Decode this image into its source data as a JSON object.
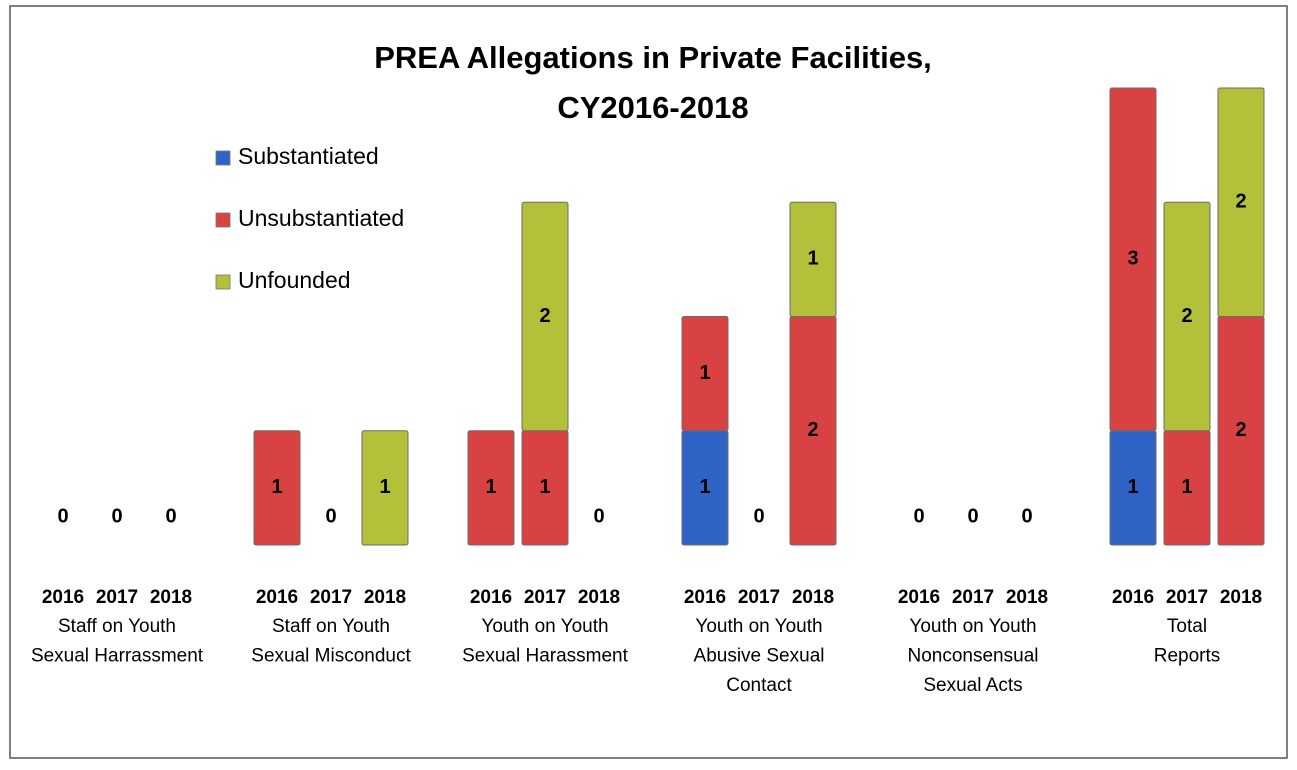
{
  "chart_data": {
    "type": "stacked_bar",
    "title": [
      "PREA Allegations in Private Facilities,",
      "CY2016-2018"
    ],
    "categories": [
      "2016",
      "2017",
      "2018",
      "2016",
      "2017",
      "2018",
      "2016",
      "2017",
      "2018",
      "2016",
      "2017",
      "2018",
      "2016",
      "2017",
      "2018",
      "2016",
      "2017",
      "2018"
    ],
    "groups": [
      [
        "Staff on Youth",
        "Sexual Harrassment"
      ],
      [
        "Staff on Youth",
        "Sexual Misconduct"
      ],
      [
        "Youth on Youth",
        "Sexual Harassment"
      ],
      [
        "Youth on Youth",
        "Abusive Sexual",
        "Contact"
      ],
      [
        "Youth on Youth",
        "Nonconsensual",
        "Sexual Acts"
      ],
      [
        "Total",
        "Reports"
      ]
    ],
    "series": [
      {
        "name": "Substantiated",
        "color": "#2f64c6",
        "values": [
          0,
          0,
          0,
          0,
          0,
          0,
          0,
          0,
          0,
          1,
          0,
          0,
          0,
          0,
          0,
          1,
          0,
          0
        ]
      },
      {
        "name": "Unsubstantiated",
        "color": "#d94242",
        "values": [
          0,
          0,
          0,
          1,
          0,
          0,
          1,
          1,
          0,
          1,
          0,
          2,
          0,
          0,
          0,
          3,
          1,
          2
        ]
      },
      {
        "name": "Unfounded",
        "color": "#b3c03a",
        "values": [
          0,
          0,
          0,
          0,
          0,
          1,
          0,
          2,
          0,
          0,
          0,
          1,
          0,
          0,
          0,
          0,
          2,
          2
        ]
      }
    ],
    "ylim": [
      0,
      4
    ],
    "legend": "top-left"
  }
}
